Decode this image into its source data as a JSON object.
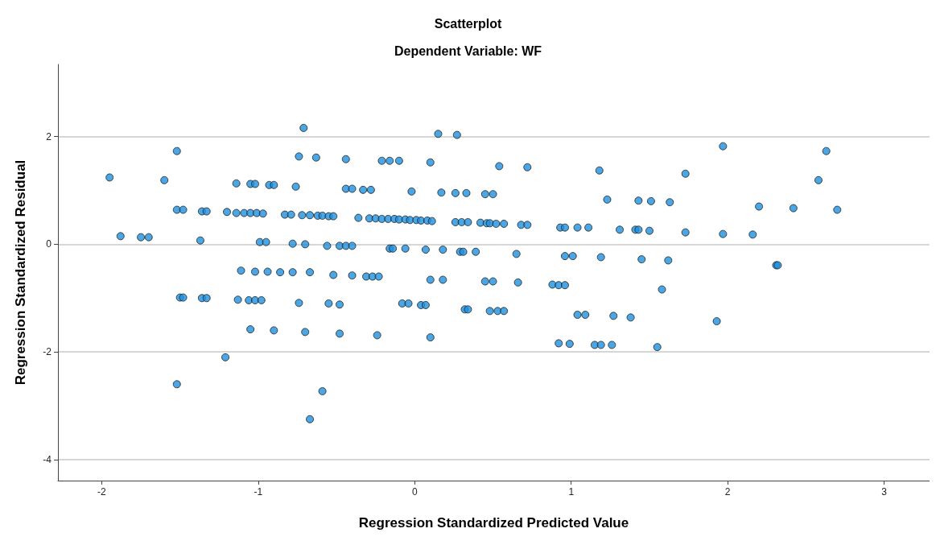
{
  "chart_data": {
    "type": "scatter",
    "title": "Scatterplot",
    "subtitle": "Dependent Variable: WF",
    "xlabel": "Regression Standardized Predicted Value",
    "ylabel": "Regression Standardized Residual",
    "xlim": [
      -2.28,
      3.29
    ],
    "ylim": [
      -4.39,
      3.34
    ],
    "xticks": [
      -2,
      -1,
      0,
      1,
      2,
      3
    ],
    "yticks": [
      -4,
      -2,
      0,
      2
    ],
    "grid": "y",
    "marker": "circle",
    "series": [
      {
        "color": "#1e90e0",
        "x": [
          -1.95,
          -1.88,
          -1.75,
          -1.7,
          -1.6,
          -1.52,
          -1.52,
          -1.48,
          -1.52,
          -1.5,
          -1.48,
          -1.37,
          -1.36,
          -1.33,
          -1.36,
          -1.33,
          -1.21,
          -1.2,
          -1.14,
          -1.14,
          -1.09,
          -1.05,
          -1.01,
          -0.97,
          -1.11,
          -1.13,
          -1.05,
          -1.02,
          -1.05,
          -1.02,
          -1.06,
          -1.02,
          -0.98,
          -0.99,
          -0.95,
          -0.94,
          -0.93,
          -0.9,
          -0.9,
          -0.86,
          -0.83,
          -0.79,
          -0.78,
          -0.78,
          -0.76,
          -0.74,
          -0.74,
          -0.72,
          -0.67,
          -0.62,
          -0.59,
          -0.55,
          -0.52,
          -0.71,
          -0.7,
          -0.7,
          -0.67,
          -0.67,
          -0.63,
          -0.59,
          -0.56,
          -0.55,
          -0.52,
          -0.48,
          -0.48,
          -0.48,
          -0.44,
          -0.44,
          -0.4,
          -0.44,
          -0.4,
          -0.4,
          -0.36,
          -0.33,
          -0.28,
          -0.31,
          -0.27,
          -0.23,
          -0.29,
          -0.25,
          -0.21,
          -0.17,
          -0.13,
          -0.1,
          -0.06,
          -0.03,
          0.01,
          0.04,
          0.08,
          0.11,
          -0.24,
          -0.21,
          -0.16,
          -0.16,
          -0.14,
          -0.1,
          -0.08,
          -0.04,
          -0.06,
          -0.02,
          0.04,
          0.07,
          0.07,
          0.1,
          0.1,
          0.1,
          0.15,
          0.17,
          0.18,
          0.18,
          0.26,
          0.33,
          0.27,
          0.26,
          0.3,
          0.34,
          0.29,
          0.31,
          0.32,
          0.34,
          0.39,
          0.42,
          0.46,
          0.48,
          0.52,
          0.57,
          0.45,
          0.5,
          0.45,
          0.5,
          0.48,
          0.53,
          0.57,
          0.54,
          0.65,
          0.66,
          0.68,
          0.72,
          0.72,
          0.88,
          0.92,
          0.96,
          0.92,
          0.93,
          0.96,
          0.96,
          1.01,
          0.99,
          1.04,
          1.04,
          1.09,
          1.11,
          1.15,
          1.19,
          1.18,
          1.19,
          1.23,
          1.26,
          1.27,
          1.31,
          1.38,
          1.41,
          1.43,
          1.43,
          1.45,
          1.5,
          1.51,
          1.55,
          1.58,
          1.62,
          1.63,
          1.73,
          1.73,
          1.93,
          1.97,
          1.97,
          2.16,
          2.2,
          2.31,
          2.32,
          2.42,
          2.58,
          2.63,
          2.7
        ],
        "values": [
          1.24,
          0.15,
          0.13,
          0.13,
          1.19,
          1.73,
          0.64,
          0.64,
          -2.6,
          -0.99,
          -0.99,
          0.07,
          0.61,
          0.61,
          -1.0,
          -1.0,
          -2.1,
          0.6,
          1.13,
          0.58,
          0.58,
          0.58,
          0.58,
          0.57,
          -0.49,
          -1.03,
          1.12,
          1.12,
          -1.58,
          -0.51,
          -1.04,
          -1.04,
          -1.04,
          0.04,
          0.04,
          -0.51,
          1.1,
          1.1,
          -1.6,
          -0.52,
          0.55,
          0.55,
          -0.52,
          0.01,
          1.07,
          1.63,
          -1.09,
          0.54,
          0.54,
          0.53,
          0.53,
          0.52,
          0.52,
          2.16,
          0.0,
          -1.63,
          -0.52,
          -3.25,
          1.61,
          -2.73,
          -0.03,
          -1.1,
          -0.57,
          -0.03,
          -1.12,
          -1.66,
          1.58,
          1.03,
          1.03,
          -0.03,
          -0.03,
          -0.58,
          0.49,
          1.01,
          1.01,
          -0.6,
          -0.6,
          -0.6,
          0.48,
          0.48,
          0.47,
          0.47,
          0.47,
          0.46,
          0.46,
          0.45,
          0.45,
          0.44,
          0.44,
          0.43,
          -1.69,
          1.55,
          1.55,
          -0.08,
          -0.08,
          1.55,
          -1.1,
          -1.1,
          -0.08,
          0.98,
          -1.13,
          -1.13,
          -0.1,
          1.52,
          -0.66,
          -1.73,
          2.05,
          0.96,
          -0.1,
          -0.66,
          0.95,
          0.95,
          2.03,
          0.41,
          0.41,
          0.41,
          -0.14,
          -0.14,
          -1.21,
          -1.21,
          -0.14,
          0.4,
          0.39,
          0.39,
          0.38,
          0.38,
          0.93,
          0.93,
          -0.69,
          -0.69,
          -1.24,
          -1.24,
          -1.24,
          1.45,
          -0.18,
          -0.71,
          0.36,
          0.36,
          1.43,
          -0.75,
          -0.76,
          -0.76,
          -1.84,
          0.31,
          0.31,
          -0.22,
          -0.22,
          -1.85,
          0.31,
          -1.31,
          -1.31,
          0.31,
          -1.87,
          -1.87,
          1.37,
          -0.24,
          0.83,
          -1.87,
          -1.33,
          0.27,
          -1.36,
          0.27,
          0.27,
          0.81,
          -0.28,
          0.25,
          0.8,
          -1.91,
          -0.84,
          -0.3,
          0.78,
          1.31,
          0.22,
          -1.43,
          1.82,
          0.19,
          0.18,
          0.7,
          -0.39,
          -0.39,
          0.67,
          1.19,
          1.73,
          0.64
        ]
      }
    ]
  }
}
